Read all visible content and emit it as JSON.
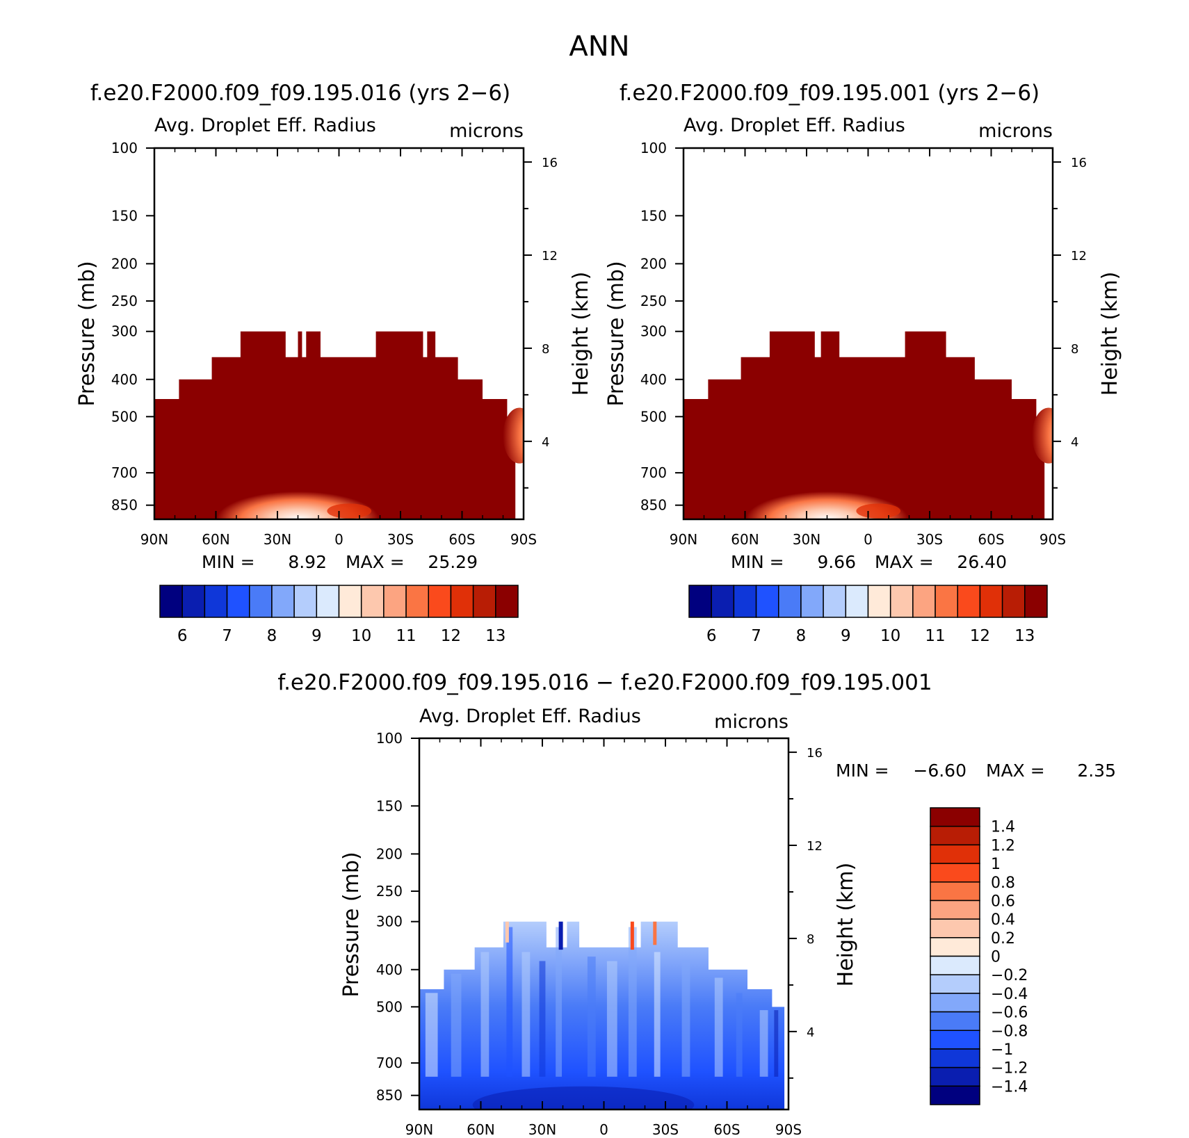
{
  "figure": {
    "title": "ANN"
  },
  "colors": {
    "abs_scale": [
      "#00007f",
      "#0a1eb0",
      "#0f37d9",
      "#1f52ff",
      "#4a7bf7",
      "#82a8fa",
      "#b4cdfc",
      "#dbeafd",
      "#ffead9",
      "#fdc8ae",
      "#fca481",
      "#fa7544",
      "#fa4a1c",
      "#e03008",
      "#b81d05",
      "#8b0000"
    ],
    "diff_scale": [
      "#00007f",
      "#0a1eb0",
      "#0f37d9",
      "#1f52ff",
      "#4a7bf7",
      "#82a8fa",
      "#b4cdfc",
      "#dbeafd",
      "#ffead9",
      "#fdc8ae",
      "#fca481",
      "#fa7544",
      "#fa4a1c",
      "#e03008",
      "#b81d05",
      "#8b0000"
    ]
  },
  "chart_data": [
    {
      "id": "p1",
      "type": "heatmap",
      "title": "f.e20.F2000.f09_f09.195.016 (yrs 2−6)",
      "variable": "Avg. Droplet Eff. Radius",
      "units": "microns",
      "xlabel": "",
      "ylabel": "Pressure (mb)",
      "y2label": "Height (km)",
      "xticks": [
        "90N",
        "60N",
        "30N",
        "0",
        "30S",
        "60S",
        "90S"
      ],
      "xrange": [
        90,
        -90
      ],
      "yticks": [
        "100",
        "150",
        "200",
        "250",
        "300",
        "400",
        "500",
        "700",
        "850"
      ],
      "y2ticks": [
        "16",
        "12",
        "8",
        "4"
      ],
      "stats": {
        "min_label": "MIN =",
        "min": "8.92",
        "max_label": "MAX =",
        "max": "25.29"
      },
      "colorbar_labels": [
        "6",
        "7",
        "8",
        "9",
        "10",
        "11",
        "12",
        "13"
      ],
      "cloud_top_profile": [
        {
          "lat": 90,
          "top_mb": 450
        },
        {
          "lat": 78,
          "top_mb": 400
        },
        {
          "lat": 62,
          "top_mb": 350
        },
        {
          "lat": 48,
          "top_mb": 300
        },
        {
          "lat": 26,
          "top_mb": 350
        },
        {
          "lat": 20,
          "top_mb": 300
        },
        {
          "lat": 18,
          "top_mb": 350
        },
        {
          "lat": 16,
          "top_mb": 300
        },
        {
          "lat": 9,
          "top_mb": 350
        },
        {
          "lat": -18,
          "top_mb": 300
        },
        {
          "lat": -41,
          "top_mb": 350
        },
        {
          "lat": -43,
          "top_mb": 300
        },
        {
          "lat": -47,
          "top_mb": 350
        },
        {
          "lat": -58,
          "top_mb": 400
        },
        {
          "lat": -70,
          "top_mb": 450
        },
        {
          "lat": -82,
          "top_mb": 500
        },
        {
          "lat": -88,
          "top_mb": 500
        }
      ]
    },
    {
      "id": "p2",
      "type": "heatmap",
      "title": "f.e20.F2000.f09_f09.195.001 (yrs 2−6)",
      "variable": "Avg. Droplet Eff. Radius",
      "units": "microns",
      "xlabel": "",
      "ylabel": "Pressure (mb)",
      "y2label": "Height (km)",
      "xticks": [
        "90N",
        "60N",
        "30N",
        "0",
        "30S",
        "60S",
        "90S"
      ],
      "xrange": [
        90,
        -90
      ],
      "yticks": [
        "100",
        "150",
        "200",
        "250",
        "300",
        "400",
        "500",
        "700",
        "850"
      ],
      "y2ticks": [
        "16",
        "12",
        "8",
        "4"
      ],
      "stats": {
        "min_label": "MIN =",
        "min": "9.66",
        "max_label": "MAX =",
        "max": "26.40"
      },
      "colorbar_labels": [
        "6",
        "7",
        "8",
        "9",
        "10",
        "11",
        "12",
        "13"
      ],
      "cloud_top_profile": [
        {
          "lat": 90,
          "top_mb": 450
        },
        {
          "lat": 78,
          "top_mb": 400
        },
        {
          "lat": 62,
          "top_mb": 350
        },
        {
          "lat": 48,
          "top_mb": 300
        },
        {
          "lat": 26,
          "top_mb": 350
        },
        {
          "lat": 23,
          "top_mb": 300
        },
        {
          "lat": 14,
          "top_mb": 350
        },
        {
          "lat": -18,
          "top_mb": 300
        },
        {
          "lat": -38,
          "top_mb": 350
        },
        {
          "lat": -52,
          "top_mb": 400
        },
        {
          "lat": -70,
          "top_mb": 450
        },
        {
          "lat": -82,
          "top_mb": 500
        },
        {
          "lat": -88,
          "top_mb": 500
        }
      ]
    },
    {
      "id": "p3",
      "type": "heatmap",
      "title": "f.e20.F2000.f09_f09.195.016 − f.e20.F2000.f09_f09.195.001",
      "variable": "Avg. Droplet Eff. Radius",
      "units": "microns",
      "xlabel": "",
      "ylabel": "Pressure (mb)",
      "y2label": "Height (km)",
      "xticks": [
        "90N",
        "60N",
        "30N",
        "0",
        "30S",
        "60S",
        "90S"
      ],
      "xrange": [
        90,
        -90
      ],
      "yticks": [
        "100",
        "150",
        "200",
        "250",
        "300",
        "400",
        "500",
        "700",
        "850"
      ],
      "y2ticks": [
        "16",
        "12",
        "8",
        "4"
      ],
      "stats": {
        "min_label": "MIN =",
        "min": "−6.60",
        "max_label": "MAX =",
        "max": "2.35"
      },
      "colorbar_labels": [
        "1.4",
        "1.2",
        "1",
        "0.8",
        "0.6",
        "0.4",
        "0.2",
        "0",
        "−0.2",
        "−0.4",
        "−0.6",
        "−0.8",
        "−1",
        "−1.2",
        "−1.4"
      ]
    }
  ]
}
